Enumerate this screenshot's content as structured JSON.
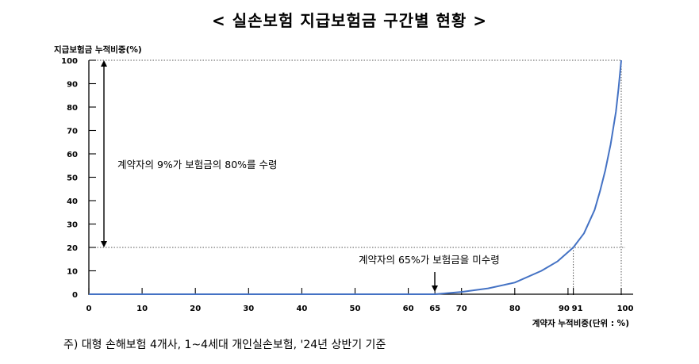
{
  "title": "< 실손보험 지급보험금 구간별 현황 >",
  "footnote": "주) 대형 손해보험 4개사, 1~4세대 개인실손보험, '24년 상반기 기준",
  "chart_data": {
    "type": "line",
    "ylabel": "지급보험금 누적비중(%)",
    "xlabel": "계약자 누적비중(단위 : %)",
    "xlim": [
      0,
      100
    ],
    "ylim": [
      0,
      100
    ],
    "x_ticks": [
      0,
      10,
      20,
      30,
      40,
      50,
      60,
      65,
      70,
      80,
      90,
      91,
      100
    ],
    "y_ticks": [
      0,
      10,
      20,
      30,
      40,
      50,
      60,
      70,
      80,
      90,
      100
    ],
    "grid": false,
    "line_color": "#4472C4",
    "series": [
      {
        "x": [
          0,
          10,
          20,
          30,
          40,
          50,
          60,
          65,
          70,
          75,
          80,
          85,
          88,
          91,
          93,
          95,
          96,
          97,
          98,
          99,
          99.5,
          100
        ],
        "y": [
          0,
          0,
          0,
          0,
          0,
          0,
          0,
          0,
          1,
          2.5,
          5,
          10,
          14,
          20,
          26,
          36,
          44,
          53,
          64,
          78,
          88,
          100
        ]
      }
    ],
    "annotations": [
      {
        "text": "계약자의 9%가 보험금의 80%를 수령",
        "arrow": "vertical double-headed from 20 to 100"
      },
      {
        "text": "계약자의 65%가 보험금을 미수령",
        "arrow": "down to x=65"
      }
    ],
    "reference_lines": [
      {
        "type": "horizontal",
        "y": 100,
        "style": "dotted"
      },
      {
        "type": "horizontal",
        "y": 20,
        "style": "dotted"
      },
      {
        "type": "vertical",
        "x": 91,
        "style": "dotted"
      },
      {
        "type": "vertical",
        "x": 100,
        "style": "dotted"
      }
    ]
  }
}
